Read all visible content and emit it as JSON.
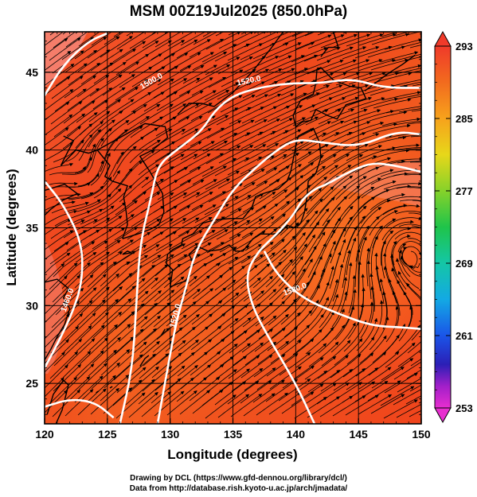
{
  "title": "MSM 00Z19Jul2025 (850.0hPa)",
  "x_axis": {
    "label": "Longitude (degrees)",
    "range": [
      120,
      150
    ],
    "ticks": [
      "120",
      "125",
      "130",
      "135",
      "140",
      "145",
      "150"
    ]
  },
  "y_axis": {
    "label": "Latitude  (degrees)",
    "range": [
      22.4,
      47.6
    ],
    "ticks": [
      "25",
      "30",
      "35",
      "40",
      "45"
    ]
  },
  "colorbar": {
    "range": [
      253,
      293
    ],
    "labels": [
      "293",
      "285",
      "277",
      "269",
      "261",
      "253"
    ]
  },
  "contours": [
    {
      "label": "1500.0",
      "color": "#ffffff"
    },
    {
      "label": "1520.0",
      "color": "#ffffff"
    },
    {
      "label": "1460.0",
      "color": "#ffffff"
    },
    {
      "label": "1520.0",
      "color": "#ffffff"
    },
    {
      "label": "1580.0",
      "color": "#ffffff"
    }
  ],
  "field_colors": {
    "background_main": "#f04a1a",
    "background_warm": "#f56a1e",
    "contour": "#ffffff",
    "streamline": "#000000",
    "coastline": "#000000"
  },
  "credits": [
    "Drawing by DCL (https://www.gfd-dennou.org/library/dcl/)",
    "Data from http://database.rish.kyoto-u.ac.jp/arch/jmadata/"
  ]
}
